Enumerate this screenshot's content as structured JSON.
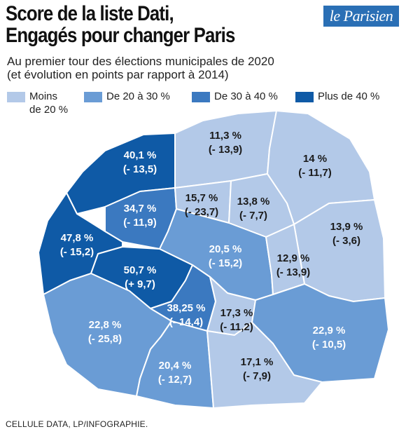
{
  "header": {
    "title_line1": "Score de la liste Dati,",
    "title_line2": "Engagés pour changer Paris",
    "subtitle_line1": "Au premier tour des élections municipales de 2020",
    "subtitle_line2": "(et évolution en points par rapport à 2014)",
    "logo_text": "le Parisien"
  },
  "legend": [
    {
      "label_line1": "Moins",
      "label_line2": "de 20 %",
      "color": "#b3c9e8"
    },
    {
      "label_line1": "De 20 à 30 %",
      "label_line2": "",
      "color": "#6a9cd5"
    },
    {
      "label_line1": "De 30 à 40 %",
      "label_line2": "",
      "color": "#3b79c0"
    },
    {
      "label_line1": "Plus de 40 %",
      "label_line2": "",
      "color": "#0f5aa6"
    }
  ],
  "districts": [
    {
      "id": "17",
      "score": "40,1 %",
      "change": "(- 13,5)",
      "color": "#0f5aa6"
    },
    {
      "id": "18",
      "score": "11,3 %",
      "change": "(- 13,9)",
      "color": "#b3c9e8"
    },
    {
      "id": "19",
      "score": "14 %",
      "change": "(- 11,7)",
      "color": "#b3c9e8"
    },
    {
      "id": "8",
      "score": "34,7 %",
      "change": "(- 11,9)",
      "color": "#3b79c0"
    },
    {
      "id": "9",
      "score": "15,7 %",
      "change": "(- 23,7)",
      "color": "#b3c9e8"
    },
    {
      "id": "10",
      "score": "13,8 %",
      "change": "(- 7,7)",
      "color": "#b3c9e8"
    },
    {
      "id": "20",
      "score": "13,9 %",
      "change": "(- 3,6)",
      "color": "#b3c9e8"
    },
    {
      "id": "16",
      "score": "47,8 %",
      "change": "(- 15,2)",
      "color": "#0f5aa6"
    },
    {
      "id": "centre",
      "score": "20,5 %",
      "change": "(- 15,2)",
      "color": "#6a9cd5"
    },
    {
      "id": "11",
      "score": "12,9 %",
      "change": "(- 13,9)",
      "color": "#b3c9e8"
    },
    {
      "id": "7",
      "score": "50,7 %",
      "change": "(+ 9,7)",
      "color": "#0f5aa6"
    },
    {
      "id": "6",
      "score": "38,25 %",
      "change": "(- 14,4)",
      "color": "#3b79c0"
    },
    {
      "id": "5",
      "score": "17,3 %",
      "change": "(- 11,2)",
      "color": "#b3c9e8"
    },
    {
      "id": "15",
      "score": "22,8 %",
      "change": "(- 25,8)",
      "color": "#6a9cd5"
    },
    {
      "id": "12",
      "score": "22,9 %",
      "change": "(- 10,5)",
      "color": "#6a9cd5"
    },
    {
      "id": "14",
      "score": "20,4 %",
      "change": "(- 12,7)",
      "color": "#6a9cd5"
    },
    {
      "id": "13",
      "score": "17,1 %",
      "change": "(- 7,9)",
      "color": "#b3c9e8"
    }
  ],
  "footer": {
    "source": "CELLULE DATA, LP/INFOGRAPHIE."
  }
}
